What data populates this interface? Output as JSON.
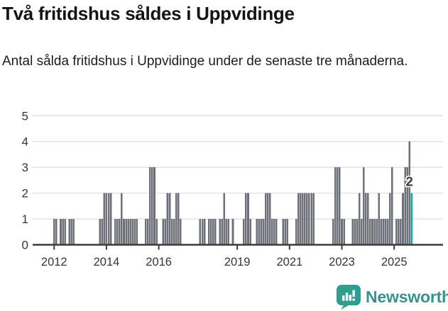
{
  "header": {
    "title": "Två fritidshus såldes i Uppvidinge",
    "subtitle": "Antal sålda fritidshus i Uppvidinge under de senaste tre månaderna."
  },
  "chart_data": {
    "type": "bar",
    "title": "Två fritidshus såldes i Uppvidinge",
    "subtitle": "Antal sålda fritidshus i Uppvidinge under de senaste tre månaderna.",
    "x_start_month": "2012-01",
    "x_end_month": "2025-09",
    "x_frequency": "monthly",
    "ylim": [
      0,
      5
    ],
    "yticks": [
      0,
      1,
      2,
      3,
      4,
      5
    ],
    "grid": "horizontal",
    "legend": "none",
    "xticks": {
      "labels": [
        "2012",
        "2014",
        "2016",
        "2019",
        "2021",
        "2023",
        "2025"
      ],
      "month_index": [
        0,
        24,
        48,
        84,
        108,
        132,
        156
      ]
    },
    "values": [
      1,
      1,
      0,
      1,
      1,
      1,
      0,
      1,
      1,
      1,
      0,
      0,
      0,
      0,
      0,
      0,
      0,
      0,
      0,
      0,
      0,
      1,
      1,
      2,
      2,
      2,
      2,
      0,
      1,
      1,
      1,
      2,
      1,
      1,
      1,
      1,
      1,
      1,
      1,
      0,
      0,
      0,
      1,
      1,
      3,
      3,
      3,
      1,
      0,
      0,
      1,
      1,
      2,
      2,
      1,
      1,
      2,
      2,
      1,
      0,
      0,
      0,
      0,
      0,
      0,
      0,
      0,
      1,
      1,
      1,
      0,
      1,
      1,
      1,
      1,
      0,
      1,
      1,
      2,
      1,
      1,
      0,
      1,
      0,
      0,
      0,
      0,
      1,
      2,
      2,
      1,
      0,
      0,
      1,
      1,
      1,
      1,
      2,
      2,
      2,
      1,
      1,
      1,
      0,
      0,
      1,
      1,
      1,
      0,
      0,
      0,
      1,
      2,
      2,
      2,
      2,
      2,
      2,
      2,
      2,
      0,
      0,
      0,
      0,
      0,
      0,
      0,
      0,
      1,
      3,
      3,
      3,
      1,
      1,
      0,
      0,
      0,
      1,
      1,
      1,
      2,
      1,
      3,
      2,
      2,
      1,
      1,
      1,
      1,
      2,
      1,
      1,
      1,
      1,
      2,
      3,
      0,
      1,
      1,
      1,
      2,
      3,
      3,
      4,
      2
    ],
    "highlight_index": 164,
    "highlight_value": 2,
    "annotation": {
      "text": "2",
      "month_index": 164,
      "value": 2
    },
    "bar_color": "#6d7078",
    "highlight_color": "#0fa3a0",
    "gridline_color": "#e1e1e1",
    "axis_color": "#3c3c3c",
    "label_color": "#363636"
  },
  "footer": {
    "brand": "Newsworthy",
    "brand_color": "#36918f",
    "brand_icon_color": "#2e9e8f"
  }
}
